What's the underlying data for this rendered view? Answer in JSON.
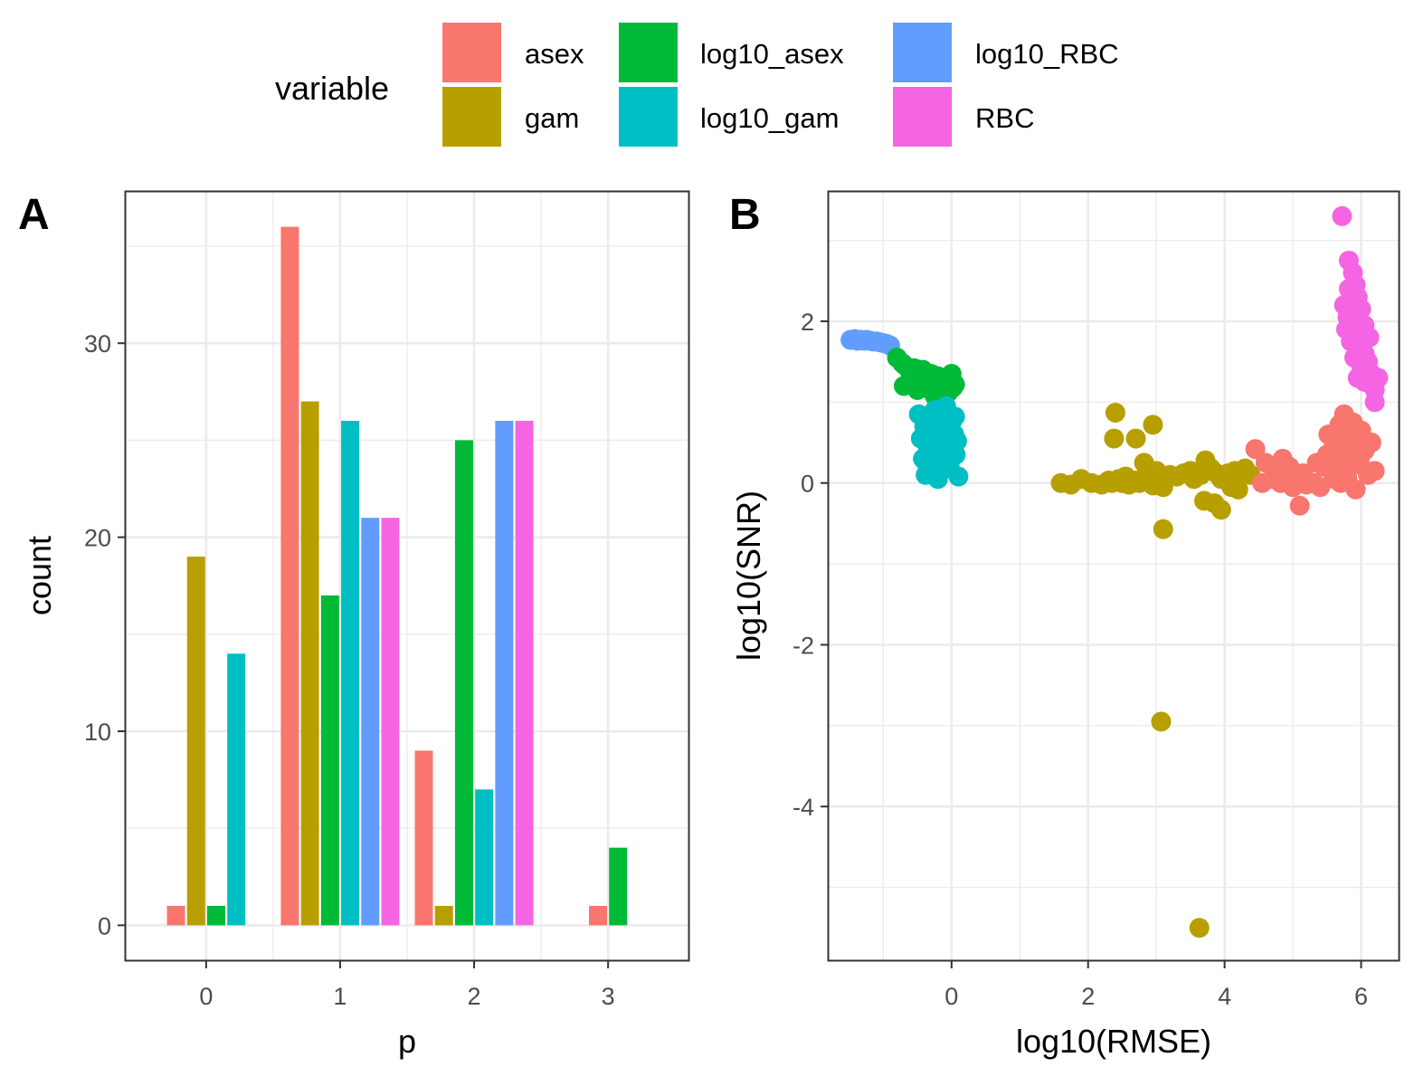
{
  "legend": {
    "title": "variable",
    "entries": [
      {
        "name": "asex",
        "color": "#F8766D"
      },
      {
        "name": "gam",
        "color": "#B79F00"
      },
      {
        "name": "log10_asex",
        "color": "#00BA38"
      },
      {
        "name": "log10_gam",
        "color": "#00BFC4"
      },
      {
        "name": "log10_RBC",
        "color": "#619CFF"
      },
      {
        "name": "RBC",
        "color": "#F564E3"
      }
    ]
  },
  "chart_data": [
    {
      "panel_tag": "A",
      "type": "bar",
      "position": "dodge",
      "xlabel": "p",
      "ylabel": "count",
      "x_ticks": [
        "0",
        "1",
        "2",
        "3"
      ],
      "y_ticks": [
        "0",
        "10",
        "20",
        "30"
      ],
      "xlim": [
        -0.6,
        3.6
      ],
      "ylim": [
        -1.8,
        37.8
      ],
      "grid": true,
      "series": [
        {
          "name": "asex",
          "values": [
            1,
            36,
            9,
            1
          ]
        },
        {
          "name": "gam",
          "values": [
            19,
            27,
            1,
            null
          ]
        },
        {
          "name": "log10_asex",
          "values": [
            1,
            17,
            25,
            4
          ]
        },
        {
          "name": "log10_gam",
          "values": [
            14,
            26,
            7,
            null
          ]
        },
        {
          "name": "log10_RBC",
          "values": [
            null,
            21,
            26,
            null
          ]
        },
        {
          "name": "RBC",
          "values": [
            null,
            21,
            26,
            null
          ]
        }
      ]
    },
    {
      "panel_tag": "B",
      "type": "scatter",
      "xlabel": "log10(RMSE)",
      "ylabel": "log10(SNR)",
      "x_ticks": [
        "0",
        "2",
        "4",
        "6"
      ],
      "y_ticks": [
        "-4",
        "-2",
        "0",
        "2"
      ],
      "xlim": [
        -1.8,
        6.55
      ],
      "ylim": [
        -5.9,
        3.6
      ],
      "grid": true,
      "series": [
        {
          "name": "log10_RBC",
          "points": [
            [
              -1.48,
              1.77
            ],
            [
              -1.42,
              1.78
            ],
            [
              -1.38,
              1.76
            ],
            [
              -1.33,
              1.77
            ],
            [
              -1.28,
              1.76
            ],
            [
              -1.24,
              1.77
            ],
            [
              -1.2,
              1.76
            ],
            [
              -1.15,
              1.75
            ],
            [
              -1.1,
              1.75
            ],
            [
              -1.05,
              1.74
            ],
            [
              -1.0,
              1.73
            ],
            [
              -0.95,
              1.72
            ],
            [
              -0.9,
              1.7
            ]
          ]
        },
        {
          "name": "log10_asex",
          "points": [
            [
              -0.8,
              1.55
            ],
            [
              -0.72,
              1.48
            ],
            [
              -0.68,
              1.45
            ],
            [
              -0.62,
              1.4
            ],
            [
              -0.55,
              1.42
            ],
            [
              -0.5,
              1.38
            ],
            [
              -0.45,
              1.35
            ],
            [
              -0.42,
              1.4
            ],
            [
              -0.35,
              1.3
            ],
            [
              -0.3,
              1.35
            ],
            [
              -0.25,
              1.28
            ],
            [
              -0.2,
              1.32
            ],
            [
              -0.15,
              1.25
            ],
            [
              -0.08,
              1.3
            ],
            [
              -0.05,
              1.2
            ],
            [
              0.0,
              1.35
            ],
            [
              0.02,
              1.18
            ],
            [
              -0.7,
              1.2
            ],
            [
              -0.5,
              1.15
            ],
            [
              -0.3,
              1.15
            ],
            [
              -0.15,
              1.1
            ],
            [
              0.05,
              1.22
            ],
            [
              -0.4,
              1.25
            ],
            [
              -0.6,
              1.3
            ],
            [
              -0.25,
              1.08
            ],
            [
              -0.05,
              1.12
            ]
          ]
        },
        {
          "name": "log10_gam",
          "points": [
            [
              -0.48,
              0.85
            ],
            [
              -0.45,
              0.55
            ],
            [
              -0.42,
              0.3
            ],
            [
              -0.4,
              0.7
            ],
            [
              -0.38,
              0.1
            ],
            [
              -0.35,
              0.45
            ],
            [
              -0.33,
              0.8
            ],
            [
              -0.3,
              0.62
            ],
            [
              -0.28,
              0.25
            ],
            [
              -0.25,
              0.9
            ],
            [
              -0.22,
              0.5
            ],
            [
              -0.2,
              0.35
            ],
            [
              -0.18,
              0.72
            ],
            [
              -0.15,
              0.15
            ],
            [
              -0.12,
              0.65
            ],
            [
              -0.1,
              0.4
            ],
            [
              -0.08,
              0.95
            ],
            [
              -0.05,
              0.55
            ],
            [
              -0.03,
              0.22
            ],
            [
              0.0,
              0.75
            ],
            [
              0.02,
              0.45
            ],
            [
              0.04,
              0.6
            ],
            [
              0.06,
              0.35
            ],
            [
              0.08,
              0.52
            ],
            [
              0.1,
              0.08
            ],
            [
              -0.2,
              0.05
            ],
            [
              -0.1,
              0.85
            ],
            [
              0.05,
              0.82
            ],
            [
              -0.35,
              0.2
            ],
            [
              -0.02,
              0.3
            ]
          ]
        },
        {
          "name": "gam",
          "points": [
            [
              1.6,
              0.0
            ],
            [
              1.75,
              -0.02
            ],
            [
              1.9,
              0.05
            ],
            [
              2.05,
              0.0
            ],
            [
              2.2,
              -0.02
            ],
            [
              2.3,
              0.03
            ],
            [
              2.35,
              0.0
            ],
            [
              2.45,
              0.05
            ],
            [
              2.5,
              0.0
            ],
            [
              2.55,
              0.08
            ],
            [
              2.6,
              -0.02
            ],
            [
              2.7,
              0.03
            ],
            [
              2.75,
              0.0
            ],
            [
              2.82,
              0.25
            ],
            [
              2.85,
              0.1
            ],
            [
              2.95,
              -0.03
            ],
            [
              3.0,
              0.15
            ],
            [
              3.05,
              0.0
            ],
            [
              3.1,
              -0.05
            ],
            [
              3.15,
              0.05
            ],
            [
              3.2,
              0.1
            ],
            [
              3.3,
              0.08
            ],
            [
              3.4,
              0.12
            ],
            [
              3.5,
              0.15
            ],
            [
              3.55,
              0.05
            ],
            [
              3.65,
              0.1
            ],
            [
              3.72,
              0.28
            ],
            [
              3.8,
              0.18
            ],
            [
              3.88,
              0.12
            ],
            [
              3.95,
              0.05
            ],
            [
              4.05,
              0.12
            ],
            [
              4.15,
              0.15
            ],
            [
              4.22,
              0.08
            ],
            [
              4.3,
              0.18
            ],
            [
              4.38,
              0.1
            ],
            [
              4.2,
              -0.08
            ],
            [
              4.1,
              -0.05
            ],
            [
              3.7,
              -0.22
            ],
            [
              3.85,
              -0.25
            ],
            [
              3.95,
              -0.33
            ],
            [
              2.4,
              0.87
            ],
            [
              2.38,
              0.55
            ],
            [
              2.7,
              0.55
            ],
            [
              2.95,
              0.72
            ],
            [
              3.1,
              -0.57
            ],
            [
              3.07,
              -2.95
            ],
            [
              3.63,
              -5.5
            ]
          ]
        },
        {
          "name": "asex",
          "points": [
            [
              4.45,
              0.42
            ],
            [
              4.55,
              0.0
            ],
            [
              4.6,
              0.25
            ],
            [
              4.7,
              0.05
            ],
            [
              4.75,
              0.15
            ],
            [
              4.82,
              0.0
            ],
            [
              4.85,
              0.3
            ],
            [
              4.9,
              0.1
            ],
            [
              4.95,
              0.2
            ],
            [
              5.0,
              -0.05
            ],
            [
              5.05,
              0.05
            ],
            [
              5.1,
              -0.28
            ],
            [
              5.15,
              0.12
            ],
            [
              5.2,
              -0.02
            ],
            [
              5.3,
              0.0
            ],
            [
              5.35,
              0.25
            ],
            [
              5.4,
              -0.05
            ],
            [
              5.45,
              0.2
            ],
            [
              5.5,
              0.35
            ],
            [
              5.55,
              0.25
            ],
            [
              5.6,
              0.5
            ],
            [
              5.65,
              0.1
            ],
            [
              5.68,
              0.72
            ],
            [
              5.72,
              0.3
            ],
            [
              5.75,
              0.85
            ],
            [
              5.78,
              0.45
            ],
            [
              5.8,
              0.05
            ],
            [
              5.82,
              0.6
            ],
            [
              5.85,
              0.2
            ],
            [
              5.88,
              0.75
            ],
            [
              5.9,
              0.35
            ],
            [
              5.92,
              -0.08
            ],
            [
              5.95,
              0.55
            ],
            [
              5.98,
              0.25
            ],
            [
              6.0,
              0.65
            ],
            [
              6.05,
              0.4
            ],
            [
              6.1,
              0.1
            ],
            [
              6.15,
              0.5
            ],
            [
              6.2,
              0.15
            ],
            [
              5.6,
              0.05
            ],
            [
              5.7,
              0.0
            ],
            [
              5.52,
              0.6
            ]
          ]
        },
        {
          "name": "RBC",
          "points": [
            [
              5.72,
              3.3
            ],
            [
              5.82,
              2.75
            ],
            [
              5.88,
              2.6
            ],
            [
              5.92,
              2.45
            ],
            [
              5.75,
              2.2
            ],
            [
              5.85,
              2.25
            ],
            [
              5.95,
              2.3
            ],
            [
              5.8,
              2.05
            ],
            [
              5.9,
              2.1
            ],
            [
              6.0,
              2.15
            ],
            [
              5.78,
              1.9
            ],
            [
              5.88,
              1.95
            ],
            [
              5.98,
              1.85
            ],
            [
              6.05,
              1.95
            ],
            [
              6.12,
              1.8
            ],
            [
              5.85,
              1.75
            ],
            [
              5.95,
              1.7
            ],
            [
              6.05,
              1.6
            ],
            [
              5.9,
              1.55
            ],
            [
              6.0,
              1.45
            ],
            [
              6.1,
              1.5
            ],
            [
              6.15,
              1.35
            ],
            [
              5.95,
              1.3
            ],
            [
              6.05,
              1.25
            ],
            [
              6.2,
              1.15
            ],
            [
              6.25,
              1.3
            ],
            [
              6.2,
              1.0
            ],
            [
              5.82,
              2.4
            ],
            [
              5.92,
              2.0
            ],
            [
              6.0,
              1.75
            ]
          ]
        }
      ]
    }
  ]
}
